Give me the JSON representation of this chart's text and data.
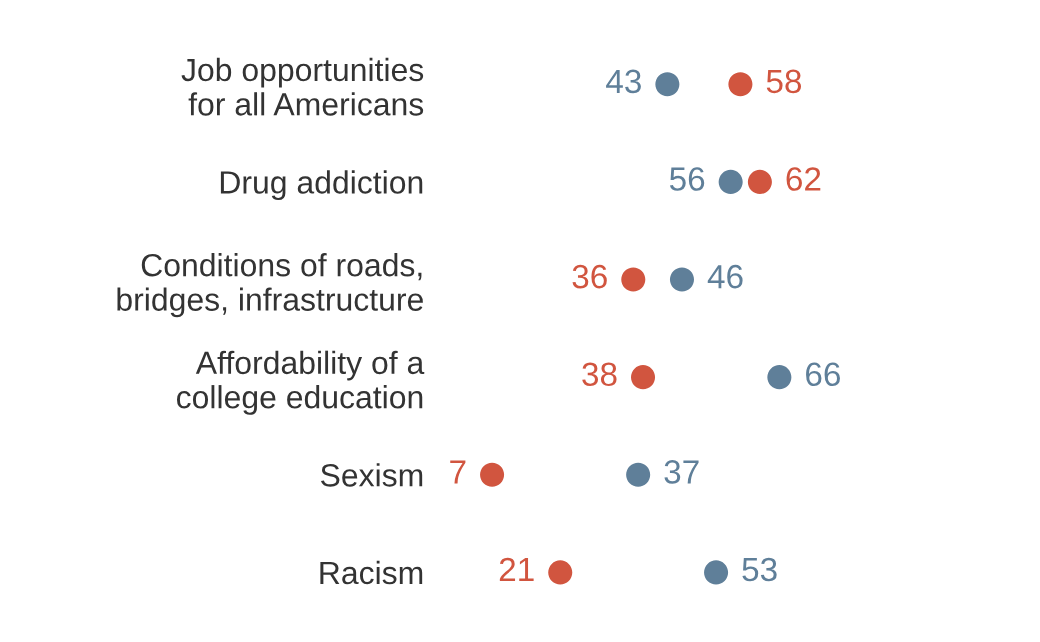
{
  "chart_data": {
    "type": "scatter",
    "orientation": "horizontal",
    "data_labels": true,
    "grid": false,
    "legend": false,
    "marker": "circle",
    "categories": [
      "Job opportunities\nfor all Americans",
      "Drug addiction",
      "Conditions of roads,\nbridges, infrastructure",
      "Affordability of a\ncollege education",
      "Sexism",
      "Racism"
    ],
    "series": [
      {
        "color": "#5f7f99",
        "values": [
          43,
          56,
          46,
          66,
          37,
          53
        ]
      },
      {
        "color": "#d1553f",
        "values": [
          58,
          62,
          36,
          38,
          7,
          21
        ]
      }
    ]
  }
}
